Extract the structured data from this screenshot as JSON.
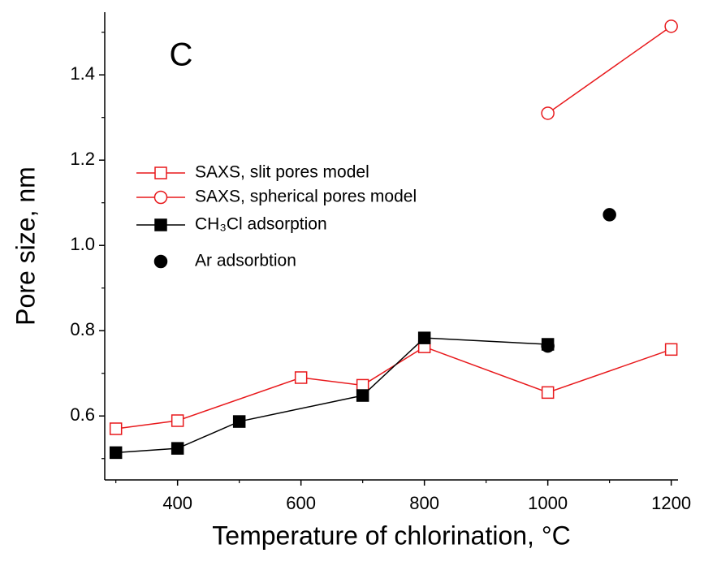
{
  "chart_data": {
    "type": "line",
    "annotation": "C",
    "xlabel": "Temperature of chlorination, °C",
    "ylabel": "Pore size, nm",
    "xlim": [
      282,
      1211
    ],
    "xticks": [
      400,
      600,
      800,
      1000,
      1200
    ],
    "ylim": [
      0.45,
      1.547
    ],
    "yticks": [
      0.6,
      0.8,
      {
        "value": 1,
        "label": "1.0"
      },
      1.2,
      1.4
    ],
    "series": [
      {
        "name": "SAXS, slit pores model",
        "color": "#e8191c",
        "marker": "open-square",
        "line": true,
        "x": [
          300,
          400,
          600,
          700,
          800,
          1000,
          1200
        ],
        "values": [
          0.57,
          0.589,
          0.69,
          0.672,
          0.762,
          0.655,
          0.756
        ]
      },
      {
        "name": "SAXS, spherical pores model",
        "color": "#e8191c",
        "marker": "open-circle",
        "line": true,
        "x": [
          1000,
          1200
        ],
        "values": [
          1.31,
          1.514
        ]
      },
      {
        "name": "CH₃Cl adsorption",
        "color": "#000000",
        "marker": "square",
        "line": true,
        "x": [
          300,
          400,
          500,
          700,
          800,
          1000
        ],
        "values": [
          0.514,
          0.524,
          0.587,
          0.648,
          0.783,
          0.768
        ]
      },
      {
        "name": "Ar adsorbtion",
        "color": "#000000",
        "marker": "circle",
        "line": false,
        "x": [
          1000,
          1100
        ],
        "values": [
          0.764,
          1.072
        ]
      }
    ]
  }
}
